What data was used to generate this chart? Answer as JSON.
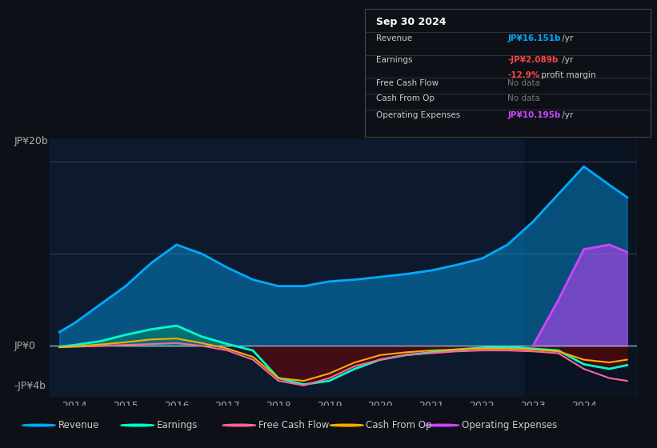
{
  "bg_color": "#0d1117",
  "chart_bg": "#0d1a2e",
  "title": "Sep 30 2024",
  "ylabel_top": "JP¥20b",
  "ylabel_zero": "JP¥0",
  "ylabel_neg": "-JP¥4b",
  "years": [
    2013.7,
    2014,
    2014.5,
    2015,
    2015.5,
    2016,
    2016.5,
    2017,
    2017.5,
    2018,
    2018.5,
    2019,
    2019.5,
    2020,
    2020.5,
    2021,
    2021.5,
    2022,
    2022.5,
    2023,
    2023.5,
    2024,
    2024.5,
    2024.85
  ],
  "revenue": [
    1.5,
    2.5,
    4.5,
    6.5,
    9.0,
    11.0,
    10.0,
    8.5,
    7.2,
    6.5,
    6.5,
    7.0,
    7.2,
    7.5,
    7.8,
    8.2,
    8.8,
    9.5,
    11.0,
    13.5,
    16.5,
    19.5,
    17.5,
    16.15
  ],
  "earnings": [
    -0.1,
    0.1,
    0.5,
    1.2,
    1.8,
    2.2,
    1.0,
    0.2,
    -0.5,
    -3.5,
    -4.2,
    -3.8,
    -2.5,
    -1.5,
    -1.0,
    -0.7,
    -0.4,
    -0.2,
    -0.1,
    -0.3,
    -0.5,
    -2.0,
    -2.5,
    -2.089
  ],
  "free_cash_flow": [
    -0.15,
    -0.1,
    0.0,
    0.1,
    0.2,
    0.3,
    0.0,
    -0.5,
    -1.5,
    -3.8,
    -4.3,
    -3.5,
    -2.2,
    -1.5,
    -1.0,
    -0.8,
    -0.6,
    -0.5,
    -0.5,
    -0.6,
    -0.8,
    -2.5,
    -3.5,
    -3.8
  ],
  "cash_from_op": [
    -0.15,
    -0.05,
    0.15,
    0.4,
    0.7,
    0.8,
    0.3,
    -0.3,
    -1.2,
    -3.5,
    -3.8,
    -3.0,
    -1.8,
    -1.0,
    -0.7,
    -0.5,
    -0.4,
    -0.3,
    -0.3,
    -0.4,
    -0.6,
    -1.5,
    -1.8,
    -1.5
  ],
  "opex_years": [
    2023.0,
    2023.5,
    2024.0,
    2024.5,
    2024.85
  ],
  "opex_vals": [
    0.0,
    5.0,
    10.5,
    11.0,
    10.195
  ],
  "revenue_color": "#00aaff",
  "earnings_color": "#00ffcc",
  "fcf_color": "#ff6699",
  "cash_op_color": "#ffaa00",
  "opex_color": "#cc44ff",
  "legend_items": [
    "Revenue",
    "Earnings",
    "Free Cash Flow",
    "Cash From Op",
    "Operating Expenses"
  ],
  "legend_colors": [
    "#00aaff",
    "#00ffcc",
    "#ff6699",
    "#ffaa00",
    "#cc44ff"
  ],
  "table_rows": [
    {
      "label": "Revenue",
      "value": "JP¥16.151b",
      "suffix": " /yr",
      "vcolor": "#00aaff",
      "sub": null,
      "sub2": null
    },
    {
      "label": "Earnings",
      "value": "-JP¥2.089b",
      "suffix": " /yr",
      "vcolor": "#ff4444",
      "sub": "-12.9%",
      "sub2": " profit margin"
    },
    {
      "label": "Free Cash Flow",
      "value": "No data",
      "suffix": "",
      "vcolor": "#888888",
      "sub": null,
      "sub2": null
    },
    {
      "label": "Cash From Op",
      "value": "No data",
      "suffix": "",
      "vcolor": "#888888",
      "sub": null,
      "sub2": null
    },
    {
      "label": "Operating Expenses",
      "value": "JP¥10.195b",
      "suffix": " /yr",
      "vcolor": "#cc44ff",
      "sub": null,
      "sub2": null
    }
  ]
}
